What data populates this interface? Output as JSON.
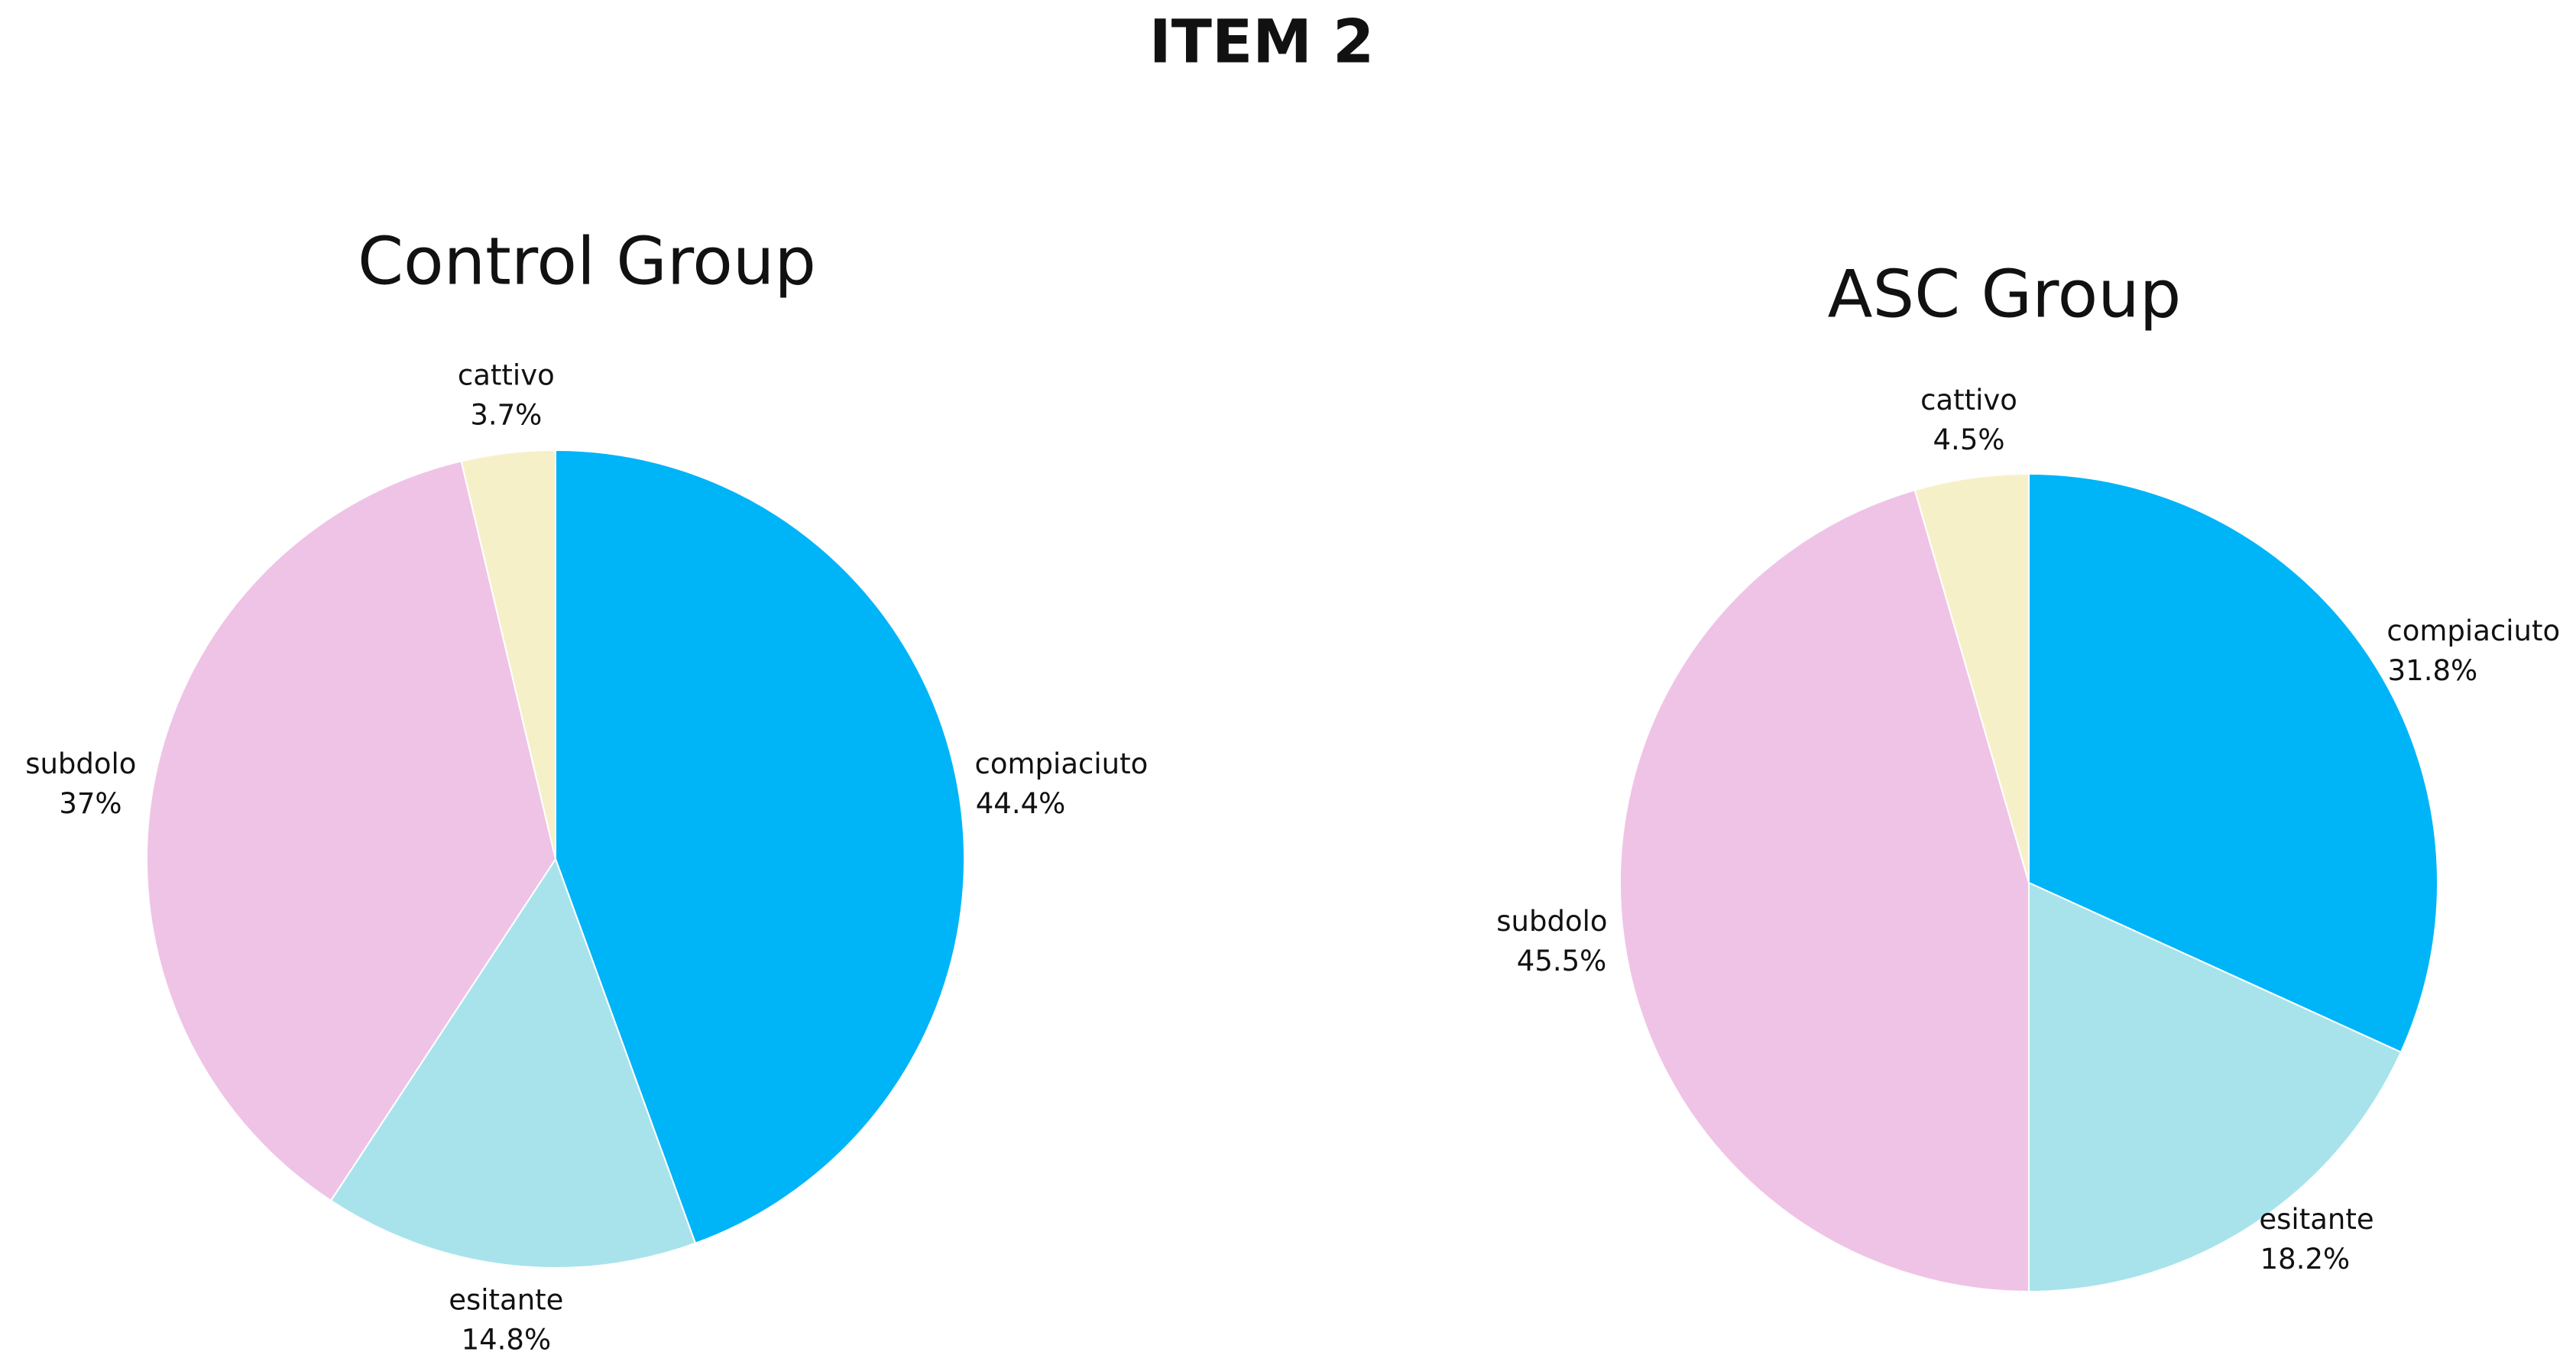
{
  "title": "ITEM 2",
  "chart_data": [
    {
      "type": "pie",
      "title": "Control Group",
      "categories": [
        "compiaciuto",
        "esitante",
        "subdolo",
        "cattivo"
      ],
      "values": [
        44.4,
        14.8,
        37,
        3.7
      ],
      "value_labels": [
        "44.4%",
        "14.8%",
        "37%",
        "3.7%"
      ],
      "colors": [
        "#00b4f8",
        "#a8e3ec",
        "#efc3e6",
        "#f6f0c9"
      ]
    },
    {
      "type": "pie",
      "title": "ASC Group",
      "categories": [
        "compiaciuto",
        "esitante",
        "subdolo",
        "cattivo"
      ],
      "values": [
        31.8,
        18.2,
        45.5,
        4.5
      ],
      "value_labels": [
        "31.8%",
        "18.2%",
        "45.5%",
        "4.5%"
      ],
      "colors": [
        "#00b4f8",
        "#a8e3ec",
        "#efc3e6",
        "#f6f0c9"
      ]
    }
  ]
}
